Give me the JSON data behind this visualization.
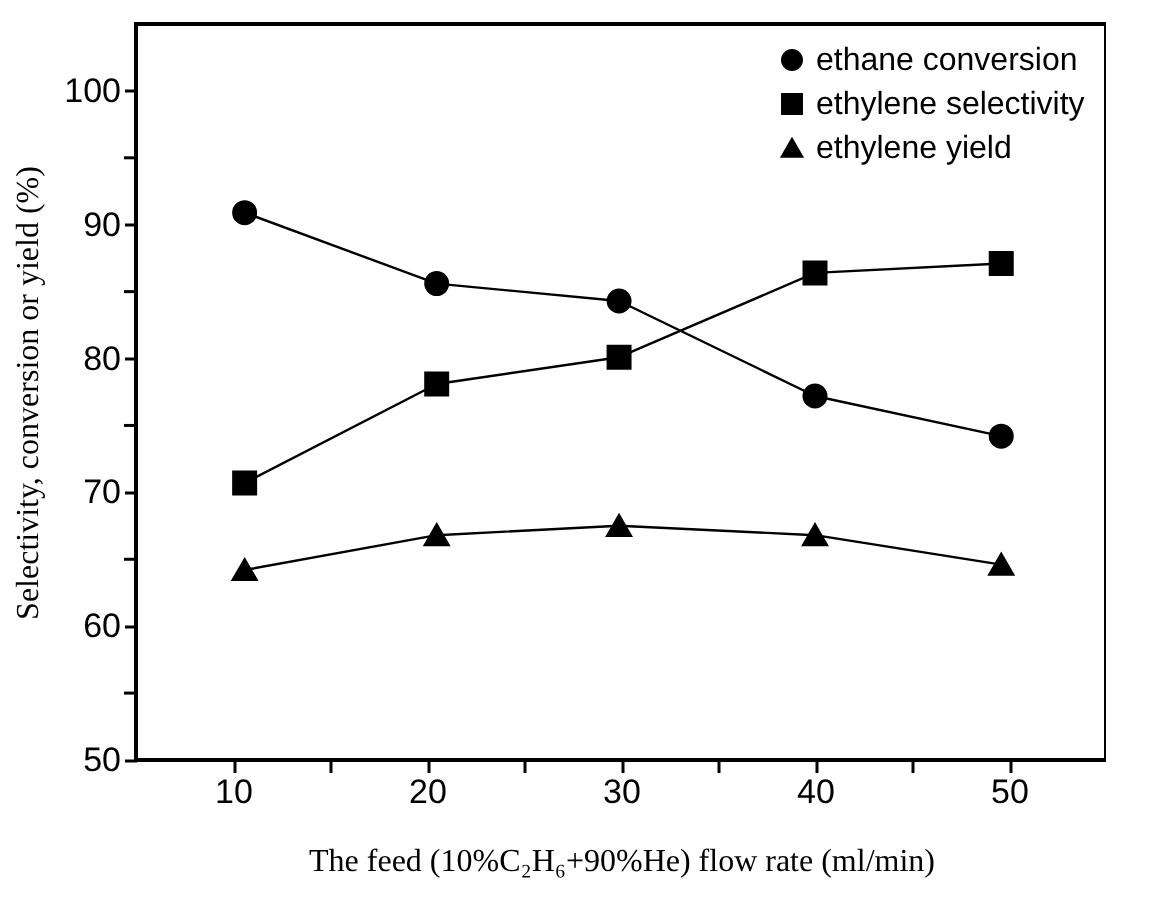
{
  "chart_data": {
    "type": "line",
    "xlabel": "The feed (10%C₂H₆+90%He) flow rate (ml/min)",
    "ylabel": "Selectivity, conversion or yield (%)",
    "x": [
      10.6,
      20.5,
      29.9,
      40,
      49.6
    ],
    "series": [
      {
        "name": "ethane conversion",
        "color": "#000000",
        "marker": "circle",
        "values": [
          90.9,
          85.6,
          84.3,
          77.2,
          74.2
        ]
      },
      {
        "name": "ethylene selectivity",
        "color": "#000000",
        "marker": "square",
        "values": [
          70.7,
          78.1,
          80.1,
          86.4,
          87.1
        ]
      },
      {
        "name": "ethylene yield",
        "color": "#000000",
        "marker": "triangle",
        "values": [
          64.2,
          66.8,
          67.5,
          66.8,
          64.6
        ]
      }
    ],
    "xlim": [
      5,
      55
    ],
    "ylim": [
      50,
      105
    ],
    "xticks": [
      10,
      {
        "value": 15,
        "label": null
      },
      20,
      {
        "value": 25,
        "label": null
      },
      30,
      {
        "value": 35,
        "label": null
      },
      40,
      {
        "value": 45,
        "label": null
      },
      50
    ],
    "yticks": [
      50,
      {
        "value": 55,
        "label": null
      },
      60,
      {
        "value": 65,
        "label": null
      },
      70,
      {
        "value": 75,
        "label": null
      },
      80,
      {
        "value": 85,
        "label": null
      },
      90,
      {
        "value": 95,
        "label": null
      },
      100
    ],
    "legend": "top right",
    "grid": false,
    "line_style": "solid"
  }
}
